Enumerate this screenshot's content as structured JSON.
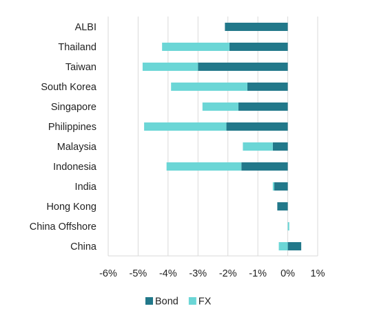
{
  "chart_data": {
    "type": "bar",
    "orientation": "horizontal",
    "stacked": true,
    "categories": [
      "ALBI",
      "Thailand",
      "Taiwan",
      "South Korea",
      "Singapore",
      "Philippines",
      "Malaysia",
      "Indonesia",
      "India",
      "Hong Kong",
      "China Offshore",
      "China"
    ],
    "series": [
      {
        "name": "Bond",
        "color": "#22788A",
        "values": [
          -2.1,
          -1.95,
          -3.0,
          -1.35,
          -1.65,
          -2.05,
          -0.5,
          -1.55,
          -0.45,
          -0.35,
          0.0,
          0.45
        ]
      },
      {
        "name": "FX",
        "color": "#6BD6D6",
        "values": [
          0.0,
          -2.25,
          -1.85,
          -2.55,
          -1.2,
          -2.75,
          -1.0,
          -2.5,
          -0.05,
          0.0,
          0.05,
          -0.3
        ]
      }
    ],
    "x_ticks": [
      "-6%",
      "-5%",
      "-4%",
      "-3%",
      "-2%",
      "-1%",
      "0%",
      "1%"
    ],
    "xlim": [
      -6,
      1
    ],
    "grid": "vertical",
    "legend": "bottom"
  }
}
